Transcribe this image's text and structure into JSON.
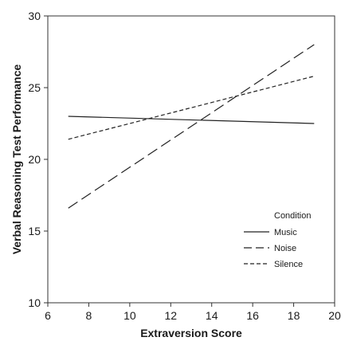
{
  "chart_data": {
    "type": "line",
    "title": "",
    "xlabel": "Extraversion Score",
    "ylabel": "Verbal Reasoning Test Performance",
    "xlim": [
      6,
      20
    ],
    "ylim": [
      10,
      30
    ],
    "xticks": [
      6,
      8,
      10,
      12,
      14,
      16,
      18,
      20
    ],
    "yticks": [
      10,
      15,
      20,
      25,
      30
    ],
    "grid": false,
    "legend": {
      "title": "Condition",
      "placement": "bottom-right"
    },
    "series": [
      {
        "name": "Music",
        "style": "solid",
        "x": [
          7,
          19
        ],
        "y": [
          23.0,
          22.5
        ]
      },
      {
        "name": "Noise",
        "style": "dashed",
        "x": [
          7,
          19
        ],
        "y": [
          16.6,
          28.0
        ]
      },
      {
        "name": "Silence",
        "style": "dotted",
        "x": [
          7,
          19
        ],
        "y": [
          21.4,
          25.8
        ]
      }
    ]
  }
}
